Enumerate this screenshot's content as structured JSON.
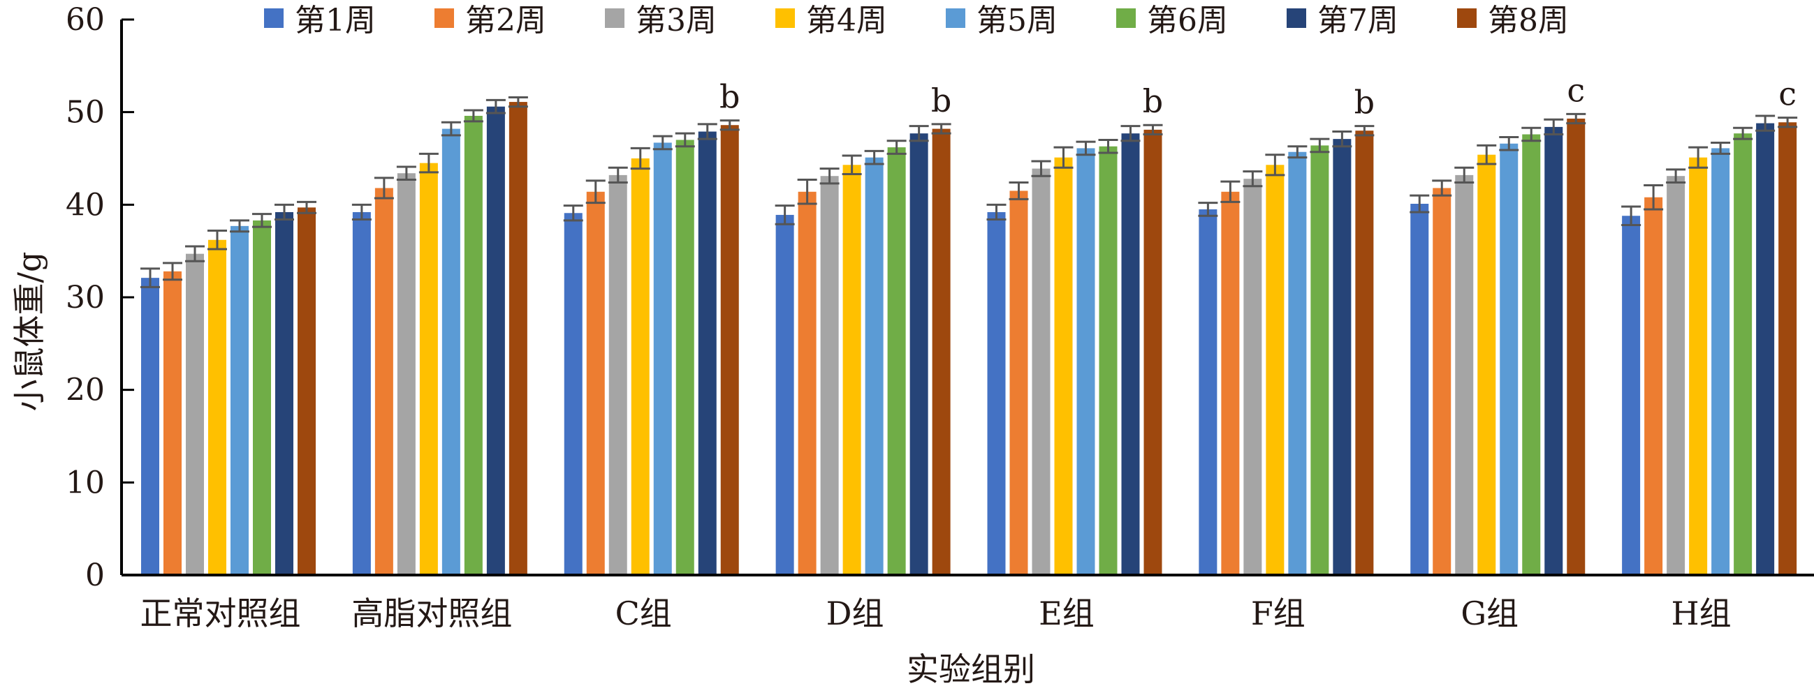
{
  "chart_data": {
    "type": "bar",
    "xlabel": "实验组别",
    "ylabel": "小鼠体重/g",
    "ylim": [
      0,
      60
    ],
    "yticks": [
      0,
      10,
      20,
      30,
      40,
      50,
      60
    ],
    "grid": false,
    "legend_placement": "top",
    "categories": [
      "正常对照组",
      "高脂对照组",
      "C组",
      "D组",
      "E组",
      "F组",
      "G组",
      "H组"
    ],
    "annotations": [
      "",
      "",
      "b",
      "b",
      "b",
      "b",
      "c",
      "c"
    ],
    "error_bar_color": "#555555",
    "series": [
      {
        "name": "第1周",
        "color": "#4472C4",
        "values": [
          32.1,
          39.2,
          39.1,
          38.9,
          39.2,
          39.5,
          40.1,
          38.8
        ],
        "errors": [
          1.0,
          0.8,
          0.8,
          1.0,
          0.8,
          0.7,
          0.9,
          1.0
        ]
      },
      {
        "name": "第2周",
        "color": "#ED7D31",
        "values": [
          32.8,
          41.8,
          41.4,
          41.4,
          41.5,
          41.4,
          41.8,
          40.8
        ],
        "errors": [
          0.9,
          1.1,
          1.2,
          1.3,
          0.9,
          1.1,
          0.8,
          1.3
        ]
      },
      {
        "name": "第3周",
        "color": "#A5A5A5",
        "values": [
          34.7,
          43.4,
          43.2,
          43.1,
          43.9,
          42.8,
          43.2,
          43.1
        ],
        "errors": [
          0.8,
          0.7,
          0.8,
          0.8,
          0.8,
          0.8,
          0.8,
          0.7
        ]
      },
      {
        "name": "第4周",
        "color": "#FFC000",
        "values": [
          36.2,
          44.5,
          45.0,
          44.3,
          45.1,
          44.3,
          45.4,
          45.1
        ],
        "errors": [
          1.0,
          1.0,
          1.1,
          1.0,
          1.1,
          1.1,
          1.0,
          1.1
        ]
      },
      {
        "name": "第5周",
        "color": "#5B9BD5",
        "values": [
          37.7,
          48.2,
          46.7,
          45.1,
          46.1,
          45.7,
          46.6,
          46.1
        ],
        "errors": [
          0.6,
          0.7,
          0.7,
          0.7,
          0.7,
          0.6,
          0.7,
          0.6
        ]
      },
      {
        "name": "第6周",
        "color": "#70AD47",
        "values": [
          38.3,
          49.6,
          47.0,
          46.2,
          46.3,
          46.4,
          47.6,
          47.7
        ],
        "errors": [
          0.7,
          0.6,
          0.7,
          0.7,
          0.7,
          0.7,
          0.7,
          0.6
        ]
      },
      {
        "name": "第7周",
        "color": "#264478",
        "values": [
          39.2,
          50.6,
          47.9,
          47.7,
          47.7,
          47.1,
          48.4,
          48.8
        ],
        "errors": [
          0.8,
          0.7,
          0.8,
          0.8,
          0.8,
          0.8,
          0.8,
          0.8
        ]
      },
      {
        "name": "第8周",
        "color": "#9E480E",
        "values": [
          39.7,
          51.1,
          48.6,
          48.2,
          48.1,
          48.0,
          49.3,
          48.9
        ],
        "errors": [
          0.6,
          0.5,
          0.5,
          0.5,
          0.5,
          0.5,
          0.5,
          0.5
        ]
      }
    ]
  }
}
